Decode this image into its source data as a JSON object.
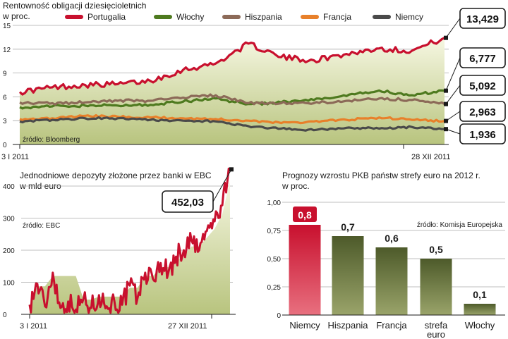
{
  "chart_data": [
    {
      "type": "line",
      "title": "Rentowność obligacji dziesięcioletnich",
      "subtitle": "w proc.",
      "source": "źródło: Bloomberg",
      "ylim": [
        0,
        15
      ],
      "yticks": [
        "0",
        "3",
        "6",
        "9",
        "12",
        "15"
      ],
      "x_start_label": "3 I 2011",
      "x_end_label": "28 XII 2011",
      "x": [
        0,
        4,
        8,
        12,
        16,
        20,
        24,
        28,
        32,
        36,
        40,
        44,
        48,
        52
      ],
      "series": [
        {
          "name": "Portugalia",
          "color": "#c8102e",
          "values": [
            6.6,
            7.2,
            7.5,
            7.6,
            8.0,
            9.4,
            10.2,
            12.7,
            11.0,
            10.6,
            11.4,
            12.1,
            11.8,
            13.429
          ],
          "last_label": "13,429"
        },
        {
          "name": "Włochy",
          "color": "#4e7a1f",
          "values": [
            4.7,
            4.8,
            4.9,
            4.9,
            5.0,
            5.4,
            5.8,
            5.1,
            5.3,
            5.6,
            6.1,
            6.8,
            6.2,
            6.777
          ],
          "last_label": "6,777"
        },
        {
          "name": "Hiszpania",
          "color": "#8c6a58",
          "values": [
            5.3,
            5.2,
            5.3,
            5.5,
            5.5,
            5.9,
            6.2,
            5.2,
            5.2,
            5.2,
            5.5,
            5.8,
            5.6,
            5.092
          ],
          "last_label": "5,092"
        },
        {
          "name": "Francja",
          "color": "#e8802a",
          "values": [
            3.2,
            3.3,
            3.6,
            3.5,
            3.4,
            3.3,
            3.2,
            3.0,
            2.7,
            2.9,
            3.1,
            3.4,
            3.1,
            2.963
          ],
          "last_label": "2,963"
        },
        {
          "name": "Niemcy",
          "color": "#4a4a4a",
          "values": [
            2.9,
            3.1,
            3.3,
            3.3,
            3.1,
            3.0,
            2.9,
            2.3,
            2.0,
            1.8,
            2.1,
            2.0,
            2.2,
            1.936
          ],
          "last_label": "1,936"
        }
      ]
    },
    {
      "type": "line",
      "title": "Jednodniowe depozyty złożone przez banki w EBC",
      "subtitle": "w mld euro",
      "source": "źródło: EBC",
      "ylim": [
        0,
        400
      ],
      "yticks": [
        "0",
        "100",
        "200",
        "300",
        "400"
      ],
      "x_start_label": "3 I 2011",
      "x_end_label": "27 XII 2011",
      "x": [
        0,
        2,
        4,
        6,
        8,
        10,
        12,
        14,
        16,
        18,
        20,
        22,
        24,
        26,
        28,
        30,
        32,
        34,
        36,
        38,
        40,
        42,
        44,
        46,
        48,
        50,
        52
      ],
      "series": [
        {
          "name": "",
          "color": "#c8102e",
          "values": [
            30,
            95,
            25,
            130,
            20,
            40,
            15,
            50,
            20,
            60,
            25,
            40,
            30,
            90,
            50,
            130,
            110,
            160,
            130,
            180,
            200,
            230,
            200,
            260,
            290,
            340,
            452.03
          ],
          "last_label": "452,03"
        }
      ]
    },
    {
      "type": "bar",
      "title": "Prognozy wzrostu PKB państw strefy euro na 2012 r.",
      "subtitle": "w proc.",
      "source": "źródło: Komisja Europejska",
      "ylim": [
        0,
        1.0
      ],
      "yticks": [
        "0",
        "0,25",
        "0,50",
        "0,75",
        "1,00"
      ],
      "categories": [
        [
          "Niemcy"
        ],
        [
          "Hiszpania"
        ],
        [
          "Francja"
        ],
        [
          "strefa",
          "euro"
        ],
        [
          "Włochy"
        ]
      ],
      "values": [
        0.8,
        0.7,
        0.6,
        0.5,
        0.1
      ],
      "value_labels": [
        "0,8",
        "0,7",
        "0,6",
        "0,5",
        "0,1"
      ],
      "colors": [
        "#c8102e",
        "#4d5a2a",
        "#4d5a2a",
        "#4d5a2a",
        "#4d5a2a"
      ]
    }
  ]
}
